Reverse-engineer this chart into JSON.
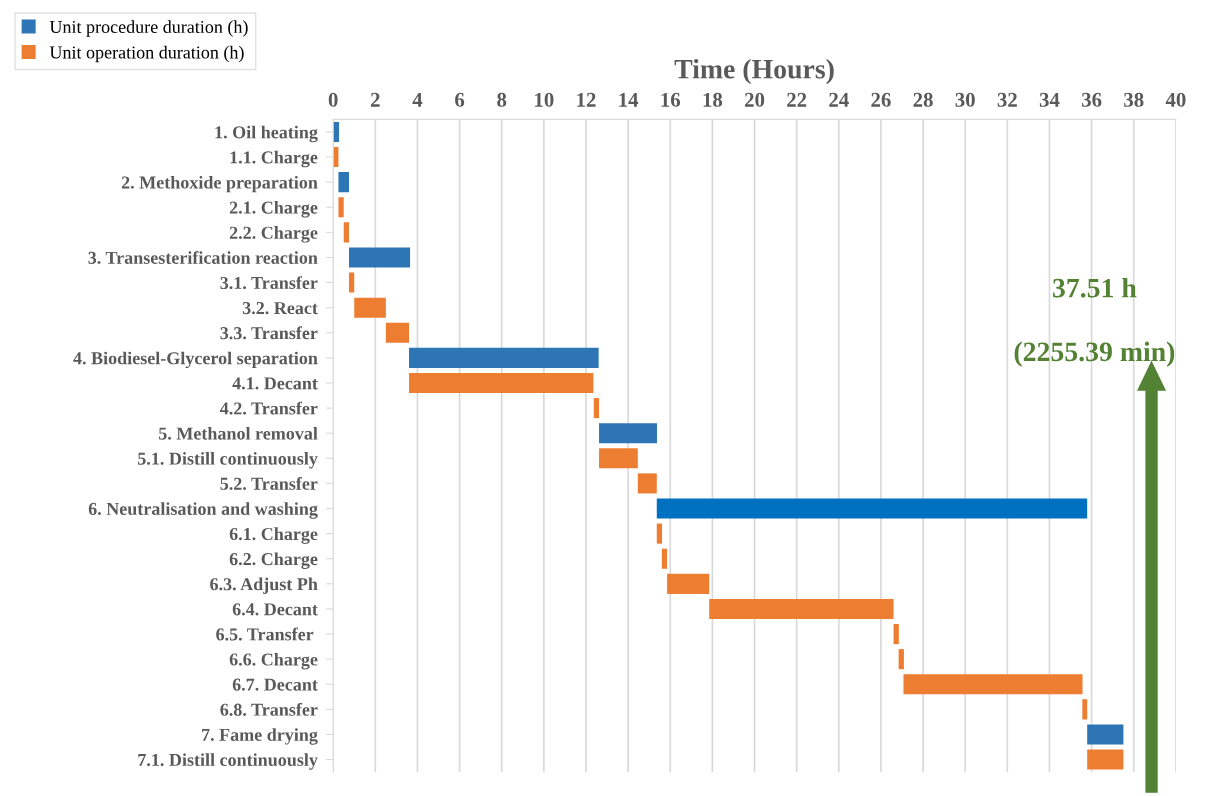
{
  "chart_data": {
    "type": "bar",
    "orientation": "horizontal",
    "xlabel": "Time (Hours)",
    "categories": [
      "1. Oil heating",
      "1.1. Charge",
      "2. Methoxide preparation",
      "2.1. Charge",
      "2.2. Charge",
      "3. Transesterification reaction",
      "3.1. Transfer",
      "3.2. React",
      "3.3. Transfer",
      "4. Biodiesel-Glycerol separation",
      "4.1. Decant",
      "4.2. Transfer",
      "5. Methanol removal",
      "5.1. Distill continuously",
      "5.2. Transfer",
      "6. Neutralisation and washing",
      "6.1. Charge",
      "6.2. Charge",
      "6.3. Adjust Ph",
      "6.4. Decant",
      "6.5. Transfer ",
      "6.6. Charge",
      "6.7. Decant",
      "6.8. Transfer",
      "7. Fame drying",
      "7.1. Distill continuously"
    ],
    "series": [
      {
        "name": "Unit procedure duration (h)",
        "color": "#2e75b6",
        "colors": [
          "#2e75b6",
          null,
          "#2e75b6",
          null,
          null,
          "#2e75b6",
          null,
          null,
          null,
          "#2e75b6",
          null,
          null,
          "#2e75b6",
          null,
          null,
          "#0070c0",
          null,
          null,
          null,
          null,
          null,
          null,
          null,
          null,
          "#2e75b6",
          null
        ],
        "base": [
          0,
          null,
          0.25,
          null,
          null,
          0.75,
          null,
          null,
          null,
          3.6,
          null,
          null,
          12.62,
          null,
          null,
          15.36,
          null,
          null,
          null,
          null,
          null,
          null,
          null,
          null,
          35.79,
          null
        ],
        "values": [
          0.28,
          null,
          0.5,
          null,
          null,
          2.9,
          null,
          null,
          null,
          9.0,
          null,
          null,
          2.75,
          null,
          null,
          20.43,
          null,
          null,
          null,
          null,
          null,
          null,
          null,
          null,
          1.72,
          null
        ]
      },
      {
        "name": "Unit operation duration (h)",
        "color": "#ed7d31",
        "base": [
          null,
          0,
          null,
          0.25,
          0.5,
          null,
          0.75,
          1.0,
          2.5,
          null,
          3.6,
          12.37,
          null,
          12.62,
          14.46,
          null,
          15.36,
          15.6,
          15.85,
          17.85,
          26.6,
          26.84,
          27.07,
          35.56,
          null,
          35.79
        ],
        "values": [
          null,
          0.25,
          null,
          0.25,
          0.25,
          null,
          0.25,
          1.5,
          1.1,
          null,
          8.75,
          0.25,
          null,
          1.84,
          0.9,
          null,
          0.25,
          0.25,
          2.0,
          8.75,
          0.25,
          0.25,
          8.5,
          0.23,
          null,
          1.72
        ]
      }
    ],
    "xlim": [
      0,
      40
    ],
    "xticks": [
      0,
      2,
      4,
      6,
      8,
      10,
      12,
      14,
      16,
      18,
      20,
      22,
      24,
      26,
      28,
      30,
      32,
      34,
      36,
      38,
      40
    ],
    "grid": "x",
    "legend": "top left",
    "annotations": [
      "37.51 h",
      "(2255.39 min)"
    ]
  }
}
